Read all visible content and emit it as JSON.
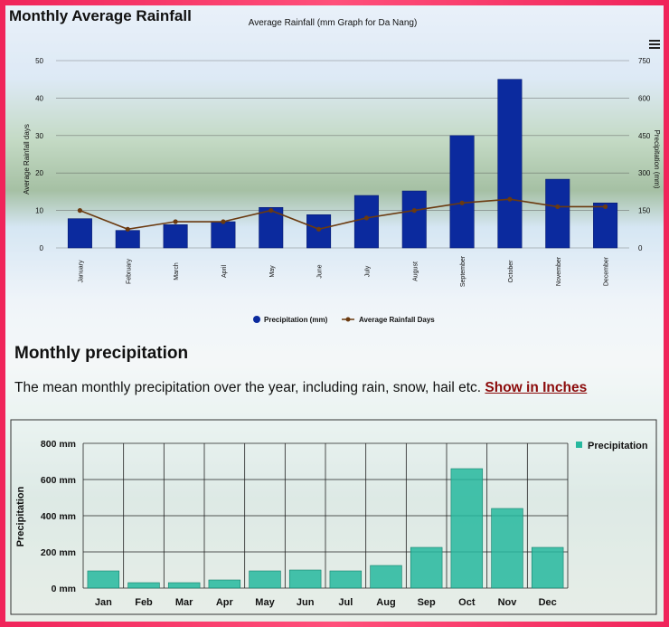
{
  "section1": {
    "title": "Monthly Average Rainfall"
  },
  "section2": {
    "title": "Monthly precipitation",
    "description": "The mean monthly precipitation over the year, including rain, snow, hail etc.",
    "link_label": "Show in Inches"
  },
  "menu_icon": "hamburger-menu-icon",
  "colors": {
    "bar1": "#0b2a9e",
    "line": "#6b3a10",
    "bar2": "#26b89e",
    "link": "#8b0a0a"
  },
  "chart_data": [
    {
      "type": "bar",
      "title": "Average Rainfall (mm Graph for Da Nang)",
      "categories": [
        "January",
        "February",
        "March",
        "April",
        "May",
        "June",
        "July",
        "August",
        "September",
        "October",
        "November",
        "December"
      ],
      "series": [
        {
          "name": "Precipitation (mm)",
          "axis": "right",
          "values": [
            117,
            70,
            93,
            105,
            162,
            133,
            210,
            228,
            450,
            675,
            275,
            180
          ]
        },
        {
          "name": "Average Rainfall Days",
          "axis": "left",
          "type": "line",
          "values": [
            10,
            5,
            7,
            7,
            10,
            5,
            8,
            10,
            12,
            13,
            11,
            11
          ]
        }
      ],
      "ylabel_left": "Average Rainfall days",
      "ylabel_right": "Precipitation (mm)",
      "ylim_left": [
        0,
        50
      ],
      "ylim_right": [
        0,
        750
      ],
      "yticks_left": [
        "0",
        "10",
        "20",
        "30",
        "40",
        "50"
      ],
      "yticks_right": [
        "0",
        "150",
        "300",
        "450",
        "600",
        "750"
      ],
      "legend": "bottom",
      "grid": true
    },
    {
      "type": "bar",
      "categories": [
        "Jan",
        "Feb",
        "Mar",
        "Apr",
        "May",
        "Jun",
        "Jul",
        "Aug",
        "Sep",
        "Oct",
        "Nov",
        "Dec"
      ],
      "series": [
        {
          "name": "Precipitation",
          "values": [
            95,
            30,
            30,
            45,
            95,
            100,
            95,
            125,
            225,
            660,
            440,
            225
          ]
        }
      ],
      "ylabel": "Precipitation",
      "ylim": [
        0,
        800
      ],
      "yticks": [
        "0 mm",
        "200 mm",
        "400 mm",
        "600 mm",
        "800 mm"
      ],
      "legend": "top-right",
      "grid": true
    }
  ]
}
